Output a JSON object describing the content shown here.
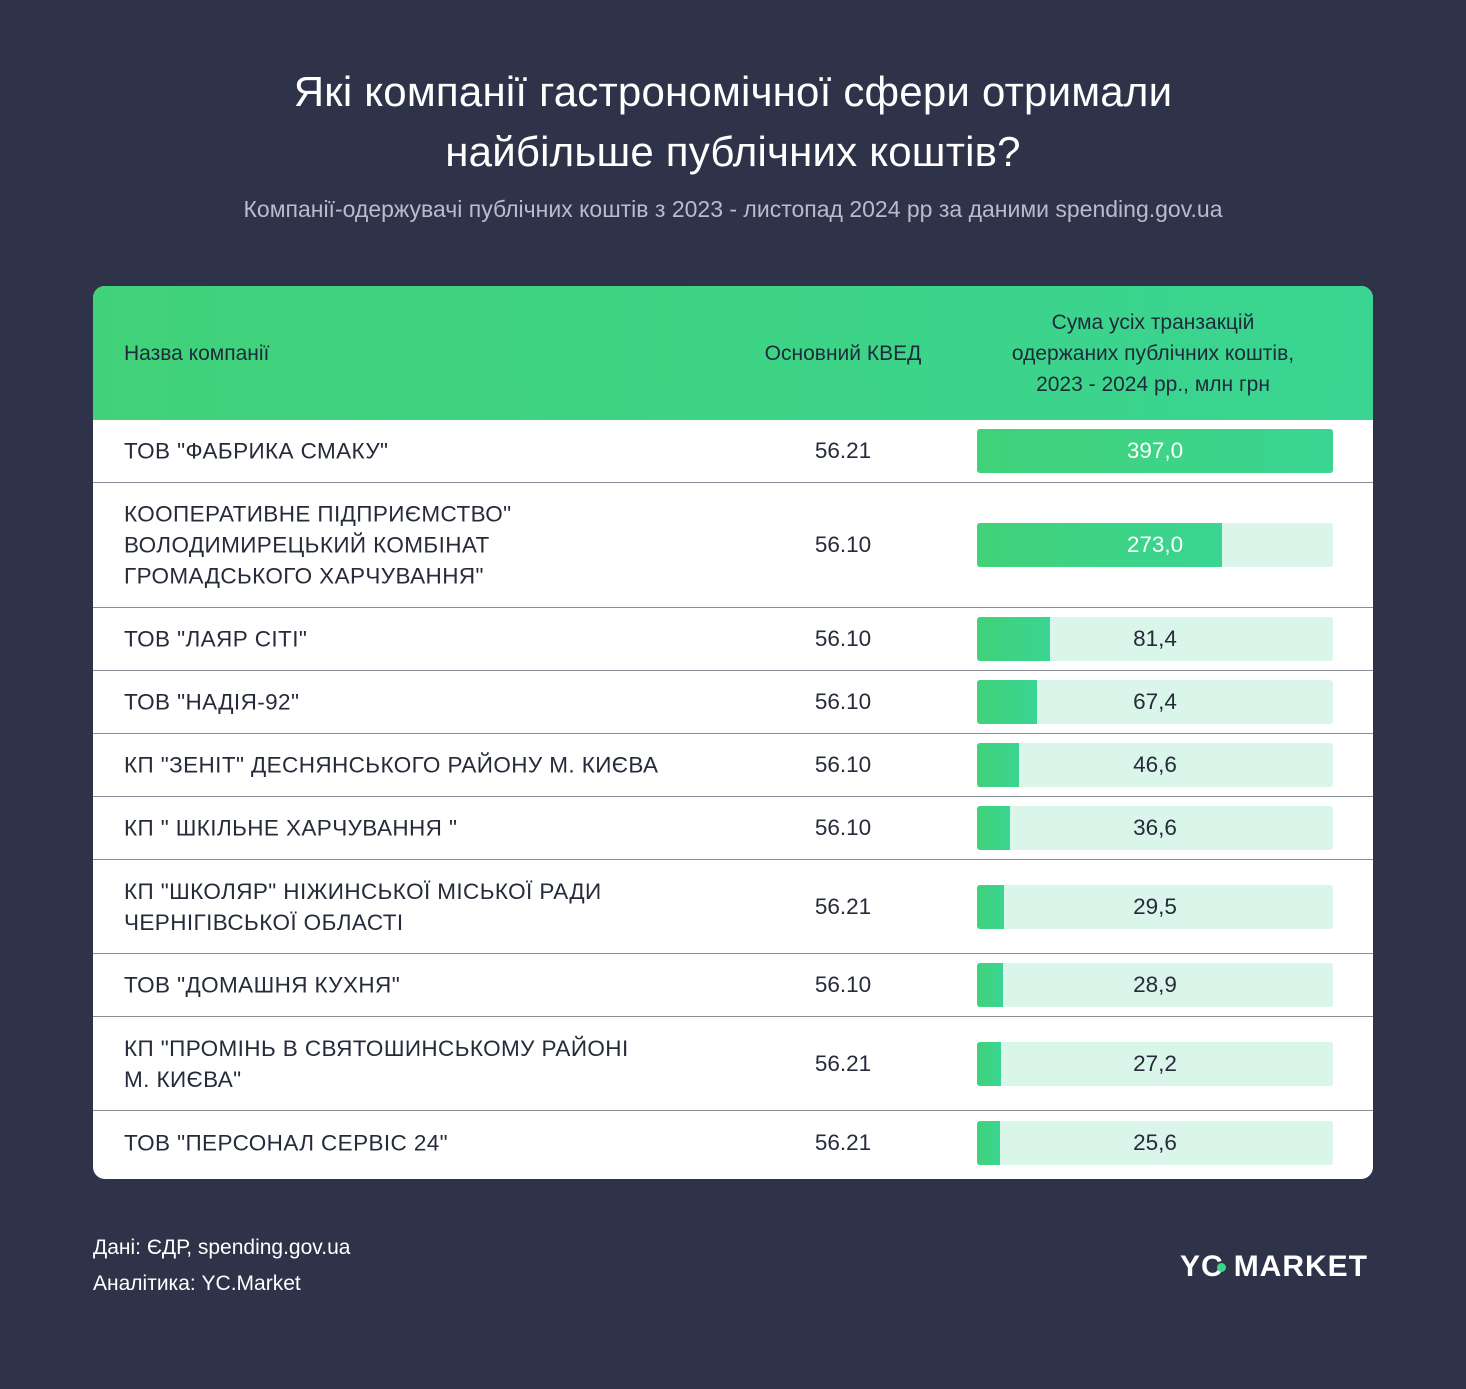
{
  "title_lines": [
    "Які компанії гастрономічної сфери отримали",
    "найбільше публічних коштів?"
  ],
  "subtitle": "Компанії-одержувачі публічних коштів з 2023 - листопад 2024 рр за даними spending.gov.ua",
  "table": {
    "headers": {
      "name": "Назва компанії",
      "kved": "Основний КВЕД",
      "sum_lines": [
        "Сума усіх транзакцій",
        "одержаних публічних коштів,",
        "2023 - 2024 рр., млн грн"
      ]
    },
    "colors": {
      "bar": "#41d279",
      "track": "#daf5ea",
      "header": "#3ad592"
    }
  },
  "chart_data": {
    "type": "bar",
    "orientation": "horizontal",
    "max": 397.0,
    "rows": [
      {
        "name_lines": [
          "ТОВ \"ФАБРИКА СМАКУ\""
        ],
        "kved": "56.21",
        "value": 397.0,
        "label": "397,0"
      },
      {
        "name_lines": [
          "КООПЕРАТИВНЕ ПІДПРИЄМСТВО\"",
          "ВОЛОДИМИРЕЦЬКИЙ КОМБІНАТ",
          "ГРОМАДСЬКОГО ХАРЧУВАННЯ\""
        ],
        "kved": "56.10",
        "value": 273.0,
        "label": "273,0"
      },
      {
        "name_lines": [
          "ТОВ \"ЛАЯР СІТІ\""
        ],
        "kved": "56.10",
        "value": 81.4,
        "label": "81,4"
      },
      {
        "name_lines": [
          "ТОВ \"НАДІЯ-92\""
        ],
        "kved": "56.10",
        "value": 67.4,
        "label": "67,4"
      },
      {
        "name_lines": [
          "КП \"ЗЕНІТ\" ДЕСНЯНСЬКОГО РАЙОНУ М. КИЄВА"
        ],
        "kved": "56.10",
        "value": 46.6,
        "label": "46,6"
      },
      {
        "name_lines": [
          "КП \" ШКІЛЬНЕ ХАРЧУВАННЯ \""
        ],
        "kved": "56.10",
        "value": 36.6,
        "label": "36,6"
      },
      {
        "name_lines": [
          "КП \"ШКОЛЯР\" НІЖИНСЬКОЇ МІСЬКОЇ РАДИ",
          "ЧЕРНІГІВСЬКОЇ ОБЛАСТІ"
        ],
        "kved": "56.21",
        "value": 29.5,
        "label": "29,5"
      },
      {
        "name_lines": [
          "ТОВ \"ДОМАШНЯ КУХНЯ\""
        ],
        "kved": "56.10",
        "value": 28.9,
        "label": "28,9"
      },
      {
        "name_lines": [
          "КП \"ПРОМІНЬ В СВЯТОШИНСЬКОМУ РАЙОНІ",
          "М. КИЄВА\""
        ],
        "kved": "56.21",
        "value": 27.2,
        "label": "27,2"
      },
      {
        "name_lines": [
          "ТОВ \"ПЕРСОНАЛ СЕРВІС 24\""
        ],
        "kved": "56.21",
        "value": 25.6,
        "label": "25,6"
      }
    ]
  },
  "footer": {
    "source": "Дані: ЄДР, spending.gov.ua",
    "analytics": "Аналітика: YC.Market"
  },
  "logo": {
    "text_left": "Y",
    "text_c": "C",
    "text_right": "MARKET",
    "accent": "#3bd58a"
  }
}
